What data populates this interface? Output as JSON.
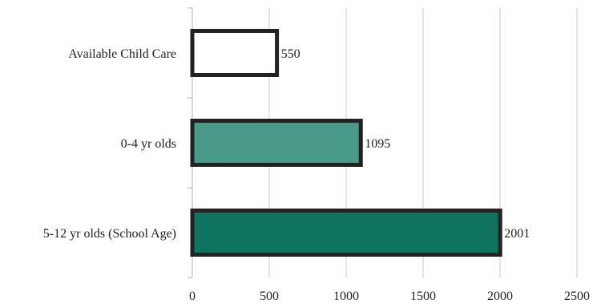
{
  "chart_data": {
    "type": "bar",
    "orientation": "horizontal",
    "categories": [
      "Available Child Care",
      "0-4 yr olds",
      "5-12 yr olds (School Age)"
    ],
    "values": [
      550,
      1095,
      2001
    ],
    "bar_colors": [
      "#ffffff",
      "#4a9a89",
      "#0e735f"
    ],
    "bar_border_color": "#222222",
    "xlim": [
      0,
      2500
    ],
    "x_ticks": [
      0,
      500,
      1000,
      1500,
      2000,
      2500
    ],
    "x_tick_labels": [
      "0",
      "500",
      "1000",
      "1500",
      "2000",
      "2500"
    ],
    "data_labels": [
      "550",
      "1095",
      "2001"
    ],
    "grid": "vertical",
    "title": "",
    "xlabel": "",
    "ylabel": "",
    "legend": "none"
  }
}
